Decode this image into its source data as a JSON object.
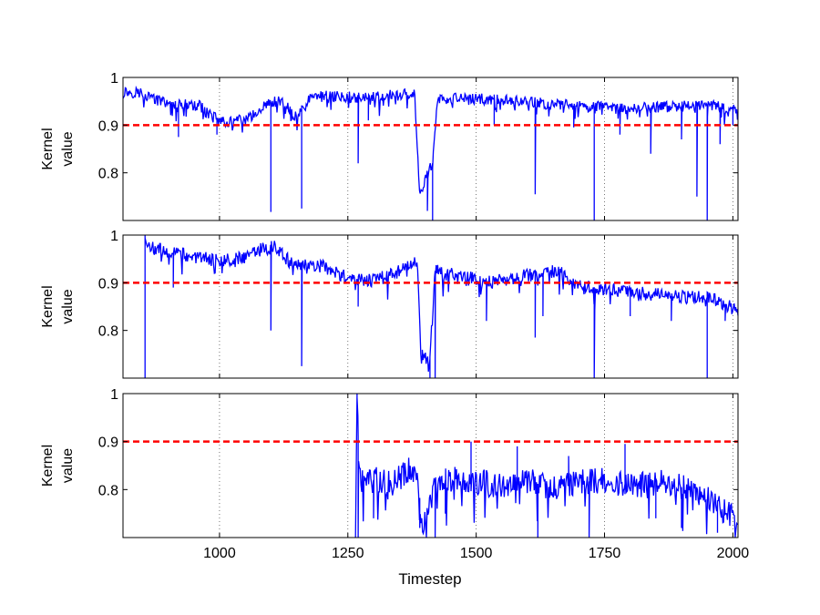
{
  "chart_data": {
    "type": "line",
    "xlabel": "Timestep",
    "xlim": [
      812,
      2010
    ],
    "x_ticks": [
      1000,
      1250,
      1500,
      1750,
      2000
    ],
    "x_tick_labels": [
      "1000",
      "1250",
      "1500",
      "1750",
      "2000"
    ],
    "threshold": 0.9,
    "colors": {
      "series": "#0000ff",
      "threshold": "#ff0000",
      "grid": "#555555"
    },
    "panels": [
      {
        "ylabel": [
          "Kernel",
          "value"
        ],
        "ylim": [
          0.7,
          1.0
        ],
        "y_ticks": [
          0.8,
          0.9,
          1.0
        ],
        "y_tick_labels": [
          "0.8",
          "0.9",
          "1"
        ],
        "base": [
          [
            812,
            0.97
          ],
          [
            850,
            0.968
          ],
          [
            870,
            0.955
          ],
          [
            900,
            0.945
          ],
          [
            960,
            0.94
          ],
          [
            990,
            0.915
          ],
          [
            1020,
            0.905
          ],
          [
            1060,
            0.915
          ],
          [
            1090,
            0.945
          ],
          [
            1120,
            0.95
          ],
          [
            1150,
            0.915
          ],
          [
            1180,
            0.96
          ],
          [
            1240,
            0.96
          ],
          [
            1280,
            0.958
          ],
          [
            1380,
            0.965
          ],
          [
            1390,
            0.76
          ],
          [
            1415,
            0.82
          ],
          [
            1425,
            0.955
          ],
          [
            1500,
            0.955
          ],
          [
            1600,
            0.948
          ],
          [
            1700,
            0.94
          ],
          [
            1800,
            0.935
          ],
          [
            1900,
            0.94
          ],
          [
            1960,
            0.94
          ],
          [
            2010,
            0.93
          ]
        ],
        "noise": 0.012,
        "spikes": [
          [
            920,
            0.875
          ],
          [
            995,
            0.88
          ],
          [
            1100,
            0.718
          ],
          [
            1160,
            0.725
          ],
          [
            1270,
            0.82
          ],
          [
            1290,
            0.91
          ],
          [
            1390,
            0.76
          ],
          [
            1405,
            0.72
          ],
          [
            1415,
            0.7
          ],
          [
            1535,
            0.9
          ],
          [
            1615,
            0.755
          ],
          [
            1690,
            0.895
          ],
          [
            1730,
            0.7
          ],
          [
            1780,
            0.88
          ],
          [
            1840,
            0.84
          ],
          [
            1900,
            0.87
          ],
          [
            1930,
            0.75
          ],
          [
            1950,
            0.7
          ],
          [
            1975,
            0.86
          ],
          [
            2000,
            0.9
          ]
        ]
      },
      {
        "ylabel": [
          "Kernel",
          "value"
        ],
        "ylim": [
          0.7,
          1.0
        ],
        "y_ticks": [
          0.8,
          0.9,
          1.0
        ],
        "y_tick_labels": [
          "0.8",
          "0.9",
          "1"
        ],
        "start": 855,
        "base": [
          [
            855,
            1.0
          ],
          [
            858,
            0.975
          ],
          [
            900,
            0.965
          ],
          [
            950,
            0.955
          ],
          [
            1000,
            0.945
          ],
          [
            1050,
            0.955
          ],
          [
            1080,
            0.97
          ],
          [
            1110,
            0.975
          ],
          [
            1140,
            0.94
          ],
          [
            1200,
            0.935
          ],
          [
            1250,
            0.91
          ],
          [
            1300,
            0.905
          ],
          [
            1340,
            0.92
          ],
          [
            1375,
            0.935
          ],
          [
            1385,
            0.948
          ],
          [
            1392,
            0.75
          ],
          [
            1410,
            0.74
          ],
          [
            1420,
            0.925
          ],
          [
            1480,
            0.915
          ],
          [
            1520,
            0.9
          ],
          [
            1600,
            0.915
          ],
          [
            1660,
            0.925
          ],
          [
            1700,
            0.895
          ],
          [
            1800,
            0.88
          ],
          [
            1900,
            0.87
          ],
          [
            1960,
            0.87
          ],
          [
            2010,
            0.84
          ]
        ],
        "noise": 0.014,
        "spikes": [
          [
            855,
            0.7
          ],
          [
            910,
            0.89
          ],
          [
            1100,
            0.8
          ],
          [
            1160,
            0.725
          ],
          [
            1270,
            0.85
          ],
          [
            1395,
            0.75
          ],
          [
            1410,
            0.7
          ],
          [
            1420,
            0.7
          ],
          [
            1520,
            0.82
          ],
          [
            1615,
            0.785
          ],
          [
            1630,
            0.83
          ],
          [
            1730,
            0.7
          ],
          [
            1800,
            0.83
          ],
          [
            1880,
            0.82
          ],
          [
            1950,
            0.7
          ],
          [
            1985,
            0.82
          ]
        ]
      },
      {
        "ylabel": [
          "Kernel",
          "value"
        ],
        "ylim": [
          0.7,
          1.0
        ],
        "y_ticks": [
          0.8,
          0.9,
          1.0
        ],
        "y_tick_labels": [
          "0.8",
          "0.9",
          "1"
        ],
        "start": 1265,
        "base": [
          [
            1265,
            0.7
          ],
          [
            1268,
            1.0
          ],
          [
            1272,
            0.82
          ],
          [
            1300,
            0.82
          ],
          [
            1340,
            0.815
          ],
          [
            1370,
            0.84
          ],
          [
            1385,
            0.845
          ],
          [
            1395,
            0.72
          ],
          [
            1410,
            0.78
          ],
          [
            1430,
            0.82
          ],
          [
            1480,
            0.82
          ],
          [
            1550,
            0.81
          ],
          [
            1600,
            0.82
          ],
          [
            1650,
            0.8
          ],
          [
            1700,
            0.815
          ],
          [
            1750,
            0.82
          ],
          [
            1800,
            0.81
          ],
          [
            1850,
            0.815
          ],
          [
            1900,
            0.805
          ],
          [
            1950,
            0.79
          ],
          [
            1980,
            0.76
          ],
          [
            2010,
            0.73
          ]
        ],
        "noise": 0.028,
        "spikes": [
          [
            1268,
            1.0
          ],
          [
            1270,
            0.7
          ],
          [
            1300,
            0.74
          ],
          [
            1390,
            0.72
          ],
          [
            1420,
            0.7
          ],
          [
            1440,
            0.75
          ],
          [
            1490,
            0.9
          ],
          [
            1580,
            0.89
          ],
          [
            1620,
            0.7
          ],
          [
            1680,
            0.87
          ],
          [
            1720,
            0.7
          ],
          [
            1790,
            0.895
          ],
          [
            1850,
            0.74
          ],
          [
            1900,
            0.72
          ],
          [
            1970,
            0.71
          ]
        ]
      }
    ]
  }
}
